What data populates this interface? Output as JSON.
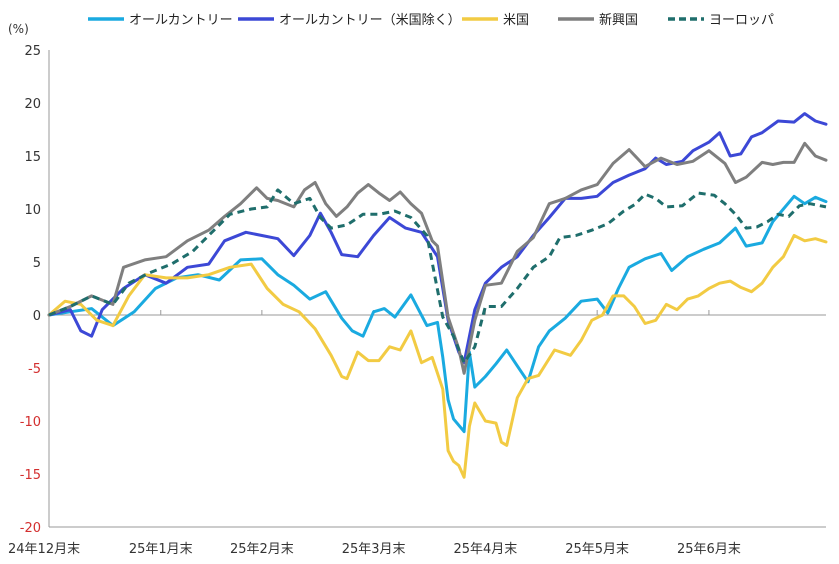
{
  "chart_data": {
    "type": "line",
    "title": "",
    "ylabel": "(%)",
    "ylim": [
      -20,
      25
    ],
    "yticks": [
      25,
      20,
      15,
      10,
      5,
      0,
      -5,
      -10,
      -15,
      -20
    ],
    "grid": false,
    "legend_position": "top",
    "x_tick_labels": [
      "24年12月末",
      "25年1月末",
      "25年2月末",
      "25年3月末",
      "25年4月末",
      "25年5月末",
      "25年6月末"
    ],
    "x_tick_index": [
      0,
      21,
      40,
      61,
      82,
      103,
      124
    ],
    "x_count": 137,
    "colors": {
      "acwi": "#1aaae0",
      "acwi_ex_us": "#3c48d6",
      "us": "#f2cb43",
      "em": "#7f7f7f",
      "europe": "#1f6e6c",
      "axis": "#9a9a9a",
      "negative_tick": "#d32f2f"
    },
    "series": [
      {
        "name": "オールカントリー",
        "key": "acwi",
        "points": [
          [
            0,
            0
          ],
          [
            4,
            0.3
          ],
          [
            8,
            0.6
          ],
          [
            12,
            -1
          ],
          [
            16,
            0.3
          ],
          [
            20,
            2.5
          ],
          [
            24,
            3.5
          ],
          [
            28,
            3.8
          ],
          [
            32,
            3.3
          ],
          [
            36,
            5.2
          ],
          [
            40,
            5.3
          ],
          [
            43,
            3.8
          ],
          [
            46,
            2.8
          ],
          [
            49,
            1.5
          ],
          [
            52,
            2.2
          ],
          [
            55,
            -0.3
          ],
          [
            57,
            -1.5
          ],
          [
            59,
            -2
          ],
          [
            61,
            0.3
          ],
          [
            63,
            0.6
          ],
          [
            65,
            -0.2
          ],
          [
            68,
            1.9
          ],
          [
            71,
            -1
          ],
          [
            73,
            -0.7
          ],
          [
            74,
            -4
          ],
          [
            75,
            -8
          ],
          [
            76,
            -9.8
          ],
          [
            78,
            -11
          ],
          [
            79,
            -3.5
          ],
          [
            80,
            -6.8
          ],
          [
            82,
            -5.8
          ],
          [
            84,
            -4.6
          ],
          [
            86,
            -3.3
          ],
          [
            88,
            -4.8
          ],
          [
            90,
            -6.3
          ],
          [
            92,
            -3
          ],
          [
            94,
            -1.5
          ],
          [
            97,
            -0.3
          ],
          [
            100,
            1.3
          ],
          [
            103,
            1.5
          ],
          [
            105,
            0.2
          ],
          [
            107,
            2.5
          ],
          [
            109,
            4.5
          ],
          [
            112,
            5.3
          ],
          [
            115,
            5.8
          ],
          [
            117,
            4.2
          ],
          [
            120,
            5.5
          ],
          [
            123,
            6.2
          ],
          [
            126,
            6.8
          ],
          [
            129,
            8.2
          ],
          [
            131,
            6.5
          ],
          [
            134,
            6.8
          ],
          [
            136,
            8.8
          ],
          [
            138,
            10
          ],
          [
            140,
            11.2
          ],
          [
            142,
            10.5
          ],
          [
            144,
            11.1
          ],
          [
            146,
            10.7
          ]
        ]
      },
      {
        "name": "オールカントリー（米国除く）",
        "key": "acwi_ex_us",
        "points": [
          [
            0,
            0
          ],
          [
            4,
            0.5
          ],
          [
            6,
            -1.5
          ],
          [
            8,
            -2
          ],
          [
            10,
            0.5
          ],
          [
            14,
            2.5
          ],
          [
            18,
            3.8
          ],
          [
            22,
            3
          ],
          [
            26,
            4.5
          ],
          [
            30,
            4.8
          ],
          [
            33,
            7
          ],
          [
            37,
            7.8
          ],
          [
            40,
            7.5
          ],
          [
            43,
            7.2
          ],
          [
            46,
            5.6
          ],
          [
            49,
            7.5
          ],
          [
            51,
            9.6
          ],
          [
            53,
            7.8
          ],
          [
            55,
            5.7
          ],
          [
            58,
            5.5
          ],
          [
            61,
            7.5
          ],
          [
            64,
            9.2
          ],
          [
            67,
            8.2
          ],
          [
            70,
            7.8
          ],
          [
            73,
            5.5
          ],
          [
            75,
            -0.5
          ],
          [
            77,
            -3.5
          ],
          [
            78,
            -4.5
          ],
          [
            80,
            0.5
          ],
          [
            82,
            3
          ],
          [
            85,
            4.5
          ],
          [
            88,
            5.5
          ],
          [
            91,
            7.5
          ],
          [
            94,
            9.2
          ],
          [
            97,
            11
          ],
          [
            100,
            11
          ],
          [
            103,
            11.2
          ],
          [
            106,
            12.5
          ],
          [
            109,
            13.2
          ],
          [
            112,
            13.8
          ],
          [
            114,
            14.8
          ],
          [
            116,
            14.2
          ],
          [
            119,
            14.5
          ],
          [
            121,
            15.5
          ],
          [
            124,
            16.3
          ],
          [
            126,
            17.2
          ],
          [
            128,
            15
          ],
          [
            130,
            15.2
          ],
          [
            132,
            16.8
          ],
          [
            134,
            17.2
          ],
          [
            137,
            18.3
          ],
          [
            140,
            18.2
          ],
          [
            142,
            19
          ],
          [
            144,
            18.3
          ],
          [
            146,
            18
          ]
        ]
      },
      {
        "name": "米国",
        "key": "us",
        "points": [
          [
            0,
            0
          ],
          [
            3,
            1.3
          ],
          [
            6,
            1
          ],
          [
            9,
            -0.5
          ],
          [
            12,
            -1
          ],
          [
            15,
            1.8
          ],
          [
            18,
            3.8
          ],
          [
            22,
            3.5
          ],
          [
            26,
            3.5
          ],
          [
            30,
            3.8
          ],
          [
            34,
            4.5
          ],
          [
            38,
            4.8
          ],
          [
            41,
            2.5
          ],
          [
            44,
            1
          ],
          [
            47,
            0.3
          ],
          [
            50,
            -1.3
          ],
          [
            53,
            -3.8
          ],
          [
            55,
            -5.8
          ],
          [
            56,
            -6
          ],
          [
            58,
            -3.5
          ],
          [
            60,
            -4.3
          ],
          [
            62,
            -4.3
          ],
          [
            64,
            -3
          ],
          [
            66,
            -3.3
          ],
          [
            68,
            -1.5
          ],
          [
            70,
            -4.5
          ],
          [
            72,
            -4
          ],
          [
            74,
            -7
          ],
          [
            75,
            -12.8
          ],
          [
            76,
            -13.8
          ],
          [
            77,
            -14.2
          ],
          [
            78,
            -15.3
          ],
          [
            79,
            -10.5
          ],
          [
            80,
            -8.3
          ],
          [
            82,
            -10
          ],
          [
            84,
            -10.2
          ],
          [
            85,
            -12
          ],
          [
            86,
            -12.3
          ],
          [
            88,
            -7.8
          ],
          [
            90,
            -6
          ],
          [
            92,
            -5.7
          ],
          [
            95,
            -3.3
          ],
          [
            98,
            -3.8
          ],
          [
            100,
            -2.4
          ],
          [
            102,
            -0.5
          ],
          [
            104,
            0
          ],
          [
            106,
            1.8
          ],
          [
            108,
            1.8
          ],
          [
            110,
            0.8
          ],
          [
            112,
            -0.8
          ],
          [
            114,
            -0.5
          ],
          [
            116,
            1
          ],
          [
            118,
            0.5
          ],
          [
            120,
            1.5
          ],
          [
            122,
            1.8
          ],
          [
            124,
            2.5
          ],
          [
            126,
            3
          ],
          [
            128,
            3.2
          ],
          [
            130,
            2.6
          ],
          [
            132,
            2.2
          ],
          [
            134,
            3
          ],
          [
            136,
            4.5
          ],
          [
            138,
            5.5
          ],
          [
            140,
            7.5
          ],
          [
            142,
            7
          ],
          [
            144,
            7.2
          ],
          [
            146,
            6.9
          ]
        ]
      },
      {
        "name": "新興国",
        "key": "em",
        "points": [
          [
            0,
            0
          ],
          [
            4,
            0.8
          ],
          [
            8,
            1.8
          ],
          [
            12,
            1
          ],
          [
            14,
            4.5
          ],
          [
            18,
            5.2
          ],
          [
            22,
            5.5
          ],
          [
            26,
            7
          ],
          [
            30,
            8
          ],
          [
            33,
            9.3
          ],
          [
            36,
            10.5
          ],
          [
            39,
            12
          ],
          [
            41,
            11
          ],
          [
            43,
            10.8
          ],
          [
            46,
            10.2
          ],
          [
            48,
            11.8
          ],
          [
            50,
            12.5
          ],
          [
            52,
            10.5
          ],
          [
            54,
            9.3
          ],
          [
            56,
            10.2
          ],
          [
            58,
            11.5
          ],
          [
            60,
            12.3
          ],
          [
            62,
            11.5
          ],
          [
            64,
            10.8
          ],
          [
            66,
            11.6
          ],
          [
            68,
            10.5
          ],
          [
            70,
            9.6
          ],
          [
            72,
            7
          ],
          [
            73,
            6.5
          ],
          [
            75,
            -0.2
          ],
          [
            77,
            -3.2
          ],
          [
            78,
            -5.5
          ],
          [
            80,
            -0.5
          ],
          [
            82,
            2.8
          ],
          [
            85,
            3
          ],
          [
            88,
            6
          ],
          [
            91,
            7.3
          ],
          [
            94,
            10.5
          ],
          [
            97,
            11
          ],
          [
            100,
            11.8
          ],
          [
            103,
            12.3
          ],
          [
            106,
            14.3
          ],
          [
            109,
            15.6
          ],
          [
            112,
            14
          ],
          [
            115,
            14.8
          ],
          [
            118,
            14.2
          ],
          [
            121,
            14.5
          ],
          [
            124,
            15.5
          ],
          [
            127,
            14.3
          ],
          [
            129,
            12.5
          ],
          [
            131,
            13
          ],
          [
            134,
            14.4
          ],
          [
            136,
            14.2
          ],
          [
            138,
            14.4
          ],
          [
            140,
            14.4
          ],
          [
            142,
            16.2
          ],
          [
            144,
            15
          ],
          [
            146,
            14.6
          ]
        ]
      },
      {
        "name": "ヨーロッパ",
        "key": "europe",
        "points": [
          [
            0,
            0
          ],
          [
            4,
            0.8
          ],
          [
            8,
            1.8
          ],
          [
            12,
            1
          ],
          [
            15,
            3
          ],
          [
            19,
            4
          ],
          [
            23,
            4.8
          ],
          [
            27,
            6
          ],
          [
            31,
            8
          ],
          [
            34,
            9.5
          ],
          [
            38,
            10
          ],
          [
            41,
            10.2
          ],
          [
            43,
            11.8
          ],
          [
            46,
            10.5
          ],
          [
            49,
            11
          ],
          [
            51,
            9.2
          ],
          [
            53,
            8.2
          ],
          [
            56,
            8.5
          ],
          [
            59,
            9.5
          ],
          [
            62,
            9.5
          ],
          [
            65,
            9.8
          ],
          [
            68,
            9.2
          ],
          [
            71,
            7.5
          ],
          [
            74,
            -0.2
          ],
          [
            76,
            -2
          ],
          [
            78,
            -4.5
          ],
          [
            80,
            -3
          ],
          [
            82,
            0.8
          ],
          [
            85,
            0.8
          ],
          [
            88,
            2.5
          ],
          [
            91,
            4.5
          ],
          [
            94,
            5.5
          ],
          [
            96,
            7.3
          ],
          [
            99,
            7.5
          ],
          [
            102,
            8
          ],
          [
            105,
            8.6
          ],
          [
            108,
            9.8
          ],
          [
            110,
            10.4
          ],
          [
            112,
            11.4
          ],
          [
            114,
            11
          ],
          [
            116,
            10.2
          ],
          [
            119,
            10.3
          ],
          [
            122,
            11.5
          ],
          [
            125,
            11.3
          ],
          [
            127,
            10.5
          ],
          [
            129,
            9.5
          ],
          [
            131,
            8.2
          ],
          [
            133,
            8.3
          ],
          [
            135,
            8.8
          ],
          [
            137,
            9.5
          ],
          [
            139,
            9.3
          ],
          [
            141,
            10.3
          ],
          [
            143,
            10.5
          ],
          [
            146,
            10.2
          ]
        ]
      }
    ]
  }
}
